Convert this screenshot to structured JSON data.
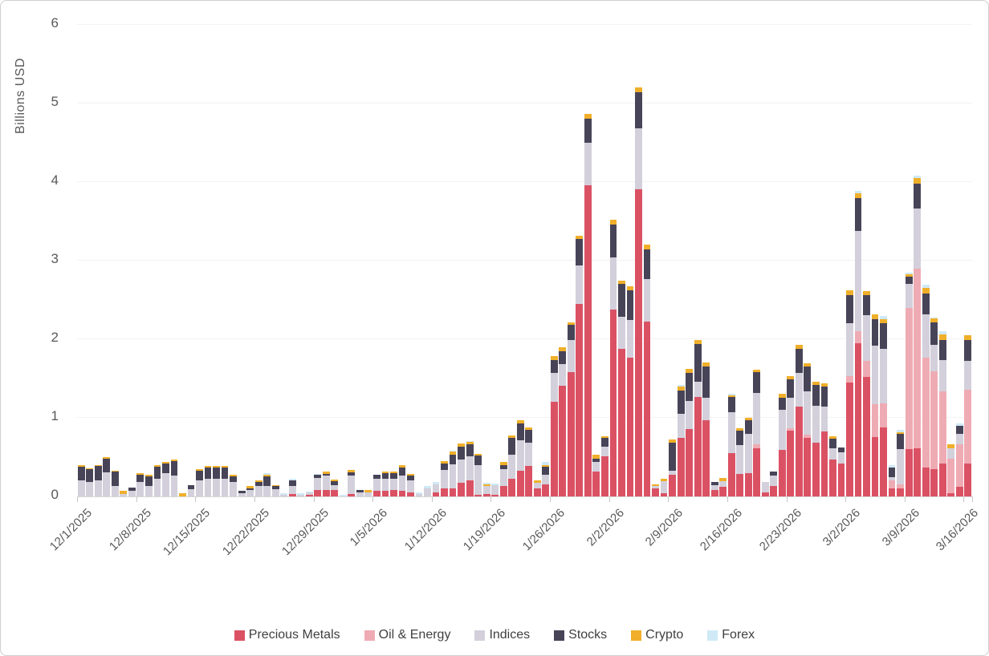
{
  "chart": {
    "ylabel": "Billions USD",
    "background": "#ffffff",
    "border_color": "#cfcfcf",
    "axis_text_color": "#595959",
    "gridline_color": "#f2f2f2",
    "axis_line_color": "#d6d6d6",
    "y_ticks": [
      0,
      1,
      2,
      3,
      4,
      5,
      6
    ],
    "x_tick_labels": [
      "12/1/2025",
      "12/8/2025",
      "12/15/2025",
      "12/22/2025",
      "12/29/2025",
      "1/5/2026",
      "1/12/2026",
      "1/19/2026",
      "1/26/2026",
      "2/2/2026",
      "2/9/2026",
      "2/16/2026",
      "2/23/2026",
      "3/2/2026",
      "3/9/2026",
      "3/16/2026"
    ]
  },
  "chart_data": {
    "type": "bar",
    "stacked": true,
    "title": "",
    "xlabel": "",
    "ylabel": "Billions USD",
    "ylim": [
      0,
      6
    ],
    "grid": "horizontal-faint",
    "legend_position": "bottom",
    "categories": [
      "12/1/2025",
      "12/2/2025",
      "12/3/2025",
      "12/4/2025",
      "12/5/2025",
      "12/6/2025",
      "12/7/2025",
      "12/8/2025",
      "12/9/2025",
      "12/10/2025",
      "12/11/2025",
      "12/12/2025",
      "12/13/2025",
      "12/14/2025",
      "12/15/2025",
      "12/16/2025",
      "12/17/2025",
      "12/18/2025",
      "12/19/2025",
      "12/20/2025",
      "12/21/2025",
      "12/22/2025",
      "12/23/2025",
      "12/24/2025",
      "12/25/2025",
      "12/26/2025",
      "12/27/2025",
      "12/28/2025",
      "12/29/2025",
      "12/30/2025",
      "12/31/2025",
      "1/1/2026",
      "1/2/2026",
      "1/3/2026",
      "1/4/2026",
      "1/5/2026",
      "1/6/2026",
      "1/7/2026",
      "1/8/2026",
      "1/9/2026",
      "1/10/2026",
      "1/11/2026",
      "1/12/2026",
      "1/13/2026",
      "1/14/2026",
      "1/15/2026",
      "1/16/2026",
      "1/17/2026",
      "1/18/2026",
      "1/19/2026",
      "1/20/2026",
      "1/21/2026",
      "1/22/2026",
      "1/23/2026",
      "1/24/2026",
      "1/25/2026",
      "1/26/2026",
      "1/27/2026",
      "1/28/2026",
      "1/29/2026",
      "1/30/2026",
      "1/31/2026",
      "2/1/2026",
      "2/2/2026",
      "2/3/2026",
      "2/4/2026",
      "2/5/2026",
      "2/6/2026",
      "2/7/2026",
      "2/8/2026",
      "2/9/2026",
      "2/10/2026",
      "2/11/2026",
      "2/12/2026",
      "2/13/2026",
      "2/14/2026",
      "2/15/2026",
      "2/16/2026",
      "2/17/2026",
      "2/18/2026",
      "2/19/2026",
      "2/20/2026",
      "2/21/2026",
      "2/22/2026",
      "2/23/2026",
      "2/24/2026",
      "2/25/2026",
      "2/26/2026",
      "2/27/2026",
      "2/28/2026",
      "3/1/2026",
      "3/2/2026",
      "3/3/2026",
      "3/4/2026",
      "3/5/2026",
      "3/6/2026",
      "3/7/2026",
      "3/8/2026",
      "3/9/2026",
      "3/10/2026",
      "3/11/2026",
      "3/12/2026",
      "3/13/2026",
      "3/14/2026",
      "3/15/2026",
      "3/16/2026"
    ],
    "series": [
      {
        "name": "Precious Metals",
        "color": "#DB5164",
        "values": [
          0,
          0,
          0,
          0,
          0,
          0,
          0,
          0,
          0,
          0,
          0,
          0,
          0,
          0,
          0,
          0,
          0,
          0,
          0,
          0,
          0,
          0,
          0,
          0,
          0,
          0.03,
          0,
          0.02,
          0.08,
          0.08,
          0.08,
          0,
          0.03,
          0,
          0,
          0.07,
          0.07,
          0.08,
          0.07,
          0.05,
          0,
          0,
          0.05,
          0.1,
          0.1,
          0.17,
          0.2,
          0.02,
          0.03,
          0.02,
          0.13,
          0.22,
          0.33,
          0.39,
          0.1,
          0.15,
          1.2,
          1.41,
          1.58,
          2.45,
          3.96,
          0.32,
          0.51,
          2.38,
          1.88,
          1.77,
          3.91,
          2.22,
          0.1,
          0.04,
          0.28,
          0.75,
          0.86,
          1.27,
          0.97,
          0.08,
          0.12,
          0.55,
          0.29,
          0.3,
          0.61,
          0.05,
          0.13,
          0.59,
          0.84,
          1.14,
          0.75,
          0.68,
          0.83,
          0.47,
          0.42,
          1.45,
          1.95,
          1.52,
          0.76,
          0.88,
          0.1,
          0.1,
          0.6,
          0.61,
          0.37,
          0.35,
          0.42,
          0.04,
          0.12,
          0.42
        ]
      },
      {
        "name": "Oil & Energy",
        "color": "#EFABB3",
        "values": [
          0,
          0,
          0,
          0,
          0,
          0,
          0,
          0,
          0,
          0,
          0,
          0,
          0,
          0,
          0,
          0,
          0,
          0,
          0,
          0,
          0,
          0,
          0,
          0,
          0,
          0,
          0,
          0,
          0,
          0,
          0,
          0,
          0,
          0,
          0,
          0,
          0,
          0,
          0,
          0,
          0,
          0,
          0,
          0,
          0,
          0,
          0,
          0,
          0,
          0,
          0,
          0,
          0,
          0,
          0,
          0,
          0,
          0,
          0,
          0,
          0,
          0,
          0,
          0,
          0,
          0,
          0,
          0,
          0,
          0,
          0,
          0,
          0,
          0,
          0,
          0,
          0,
          0,
          0,
          0,
          0.05,
          0,
          0,
          0,
          0.03,
          0,
          0.04,
          0,
          0,
          0,
          0,
          0.08,
          0.15,
          0.2,
          0.41,
          0.3,
          0.1,
          0.05,
          1.8,
          2.29,
          1.4,
          1.24,
          0.92,
          0.44,
          0.54,
          0.94
        ]
      },
      {
        "name": "Indices",
        "color": "#D3D0DC",
        "values": [
          0.2,
          0.18,
          0.2,
          0.31,
          0.13,
          0.03,
          0.07,
          0.18,
          0.13,
          0.22,
          0.3,
          0.27,
          0,
          0.09,
          0.2,
          0.22,
          0.22,
          0.22,
          0.18,
          0.04,
          0.08,
          0.13,
          0.13,
          0.09,
          0.02,
          0.1,
          0.02,
          0.03,
          0.15,
          0.19,
          0.06,
          0,
          0.24,
          0.05,
          0.05,
          0.15,
          0.15,
          0.14,
          0.2,
          0.15,
          0.03,
          0.1,
          0.1,
          0.24,
          0.31,
          0.3,
          0.31,
          0.38,
          0.1,
          0.12,
          0.22,
          0.31,
          0.38,
          0.29,
          0.07,
          0.13,
          0.37,
          0.27,
          0.41,
          0.49,
          0.54,
          0.12,
          0.12,
          0.66,
          0.41,
          0.48,
          0.77,
          0.55,
          0.03,
          0.15,
          0.05,
          0.3,
          0.35,
          0.19,
          0.29,
          0.06,
          0.07,
          0.52,
          0.36,
          0.5,
          0.66,
          0.13,
          0.14,
          0.51,
          0.39,
          0.43,
          0.55,
          0.47,
          0.31,
          0.14,
          0.14,
          0.67,
          1.28,
          0.59,
          0.75,
          0.7,
          0.05,
          0.45,
          0.3,
          0.76,
          0.55,
          0.34,
          0.39,
          0.13,
          0.14,
          0.36
        ]
      },
      {
        "name": "Stocks",
        "color": "#484458",
        "values": [
          0.18,
          0.17,
          0.19,
          0.17,
          0.19,
          0,
          0.04,
          0.1,
          0.13,
          0.16,
          0.12,
          0.18,
          0,
          0.05,
          0.13,
          0.15,
          0.15,
          0.15,
          0.08,
          0.03,
          0.02,
          0.05,
          0.13,
          0.04,
          0,
          0.07,
          0,
          0,
          0.05,
          0.02,
          0.05,
          0,
          0.04,
          0.03,
          0,
          0.06,
          0.08,
          0.08,
          0.1,
          0.07,
          0,
          0,
          0,
          0.08,
          0.12,
          0.16,
          0.15,
          0.12,
          0,
          0,
          0.05,
          0.22,
          0.22,
          0.17,
          0,
          0.1,
          0.17,
          0.17,
          0.19,
          0.34,
          0.31,
          0.04,
          0.12,
          0.42,
          0.41,
          0.37,
          0.46,
          0.37,
          0,
          0,
          0.35,
          0.3,
          0.36,
          0.48,
          0.39,
          0.04,
          0,
          0.2,
          0.19,
          0.17,
          0.26,
          0,
          0.05,
          0.16,
          0.23,
          0.31,
          0.31,
          0.27,
          0.26,
          0.12,
          0.06,
          0.36,
          0.42,
          0.25,
          0.34,
          0.32,
          0.12,
          0.2,
          0.1,
          0.32,
          0.26,
          0.28,
          0.26,
          0,
          0.1,
          0.27
        ]
      },
      {
        "name": "Crypto",
        "color": "#F0AF2A",
        "values": [
          0.02,
          0.01,
          0.01,
          0.02,
          0.01,
          0.04,
          0,
          0.02,
          0.02,
          0.02,
          0.02,
          0.02,
          0.04,
          0,
          0.02,
          0.02,
          0.02,
          0.02,
          0.02,
          0,
          0.03,
          0.02,
          0.02,
          0.01,
          0,
          0,
          0,
          0,
          0,
          0.03,
          0.02,
          0,
          0.03,
          0,
          0.03,
          0,
          0.02,
          0.02,
          0.03,
          0.02,
          0,
          0,
          0,
          0.03,
          0.04,
          0.04,
          0.03,
          0.02,
          0.02,
          0,
          0.04,
          0.03,
          0.04,
          0.03,
          0.03,
          0.02,
          0.05,
          0.05,
          0.03,
          0.04,
          0.06,
          0.05,
          0.02,
          0.06,
          0.05,
          0.05,
          0.06,
          0.06,
          0.02,
          0.04,
          0.04,
          0.05,
          0.05,
          0.05,
          0.05,
          0,
          0.04,
          0.02,
          0.03,
          0.03,
          0.03,
          0,
          0,
          0.05,
          0.04,
          0.05,
          0.04,
          0.04,
          0.04,
          0.04,
          0,
          0.06,
          0.06,
          0.05,
          0.06,
          0.06,
          0,
          0.02,
          0.03,
          0.07,
          0.07,
          0.06,
          0.07,
          0.05,
          0,
          0.06
        ]
      },
      {
        "name": "Forex",
        "color": "#CFE9F6",
        "values": [
          0,
          0,
          0,
          0,
          0,
          0,
          0,
          0,
          0,
          0,
          0,
          0,
          0,
          0,
          0,
          0,
          0,
          0,
          0,
          0,
          0,
          0,
          0.02,
          0,
          0.02,
          0.02,
          0.02,
          0.01,
          0.01,
          0,
          0,
          0.02,
          0,
          0,
          0,
          0,
          0,
          0,
          0,
          0,
          0.02,
          0.03,
          0.03,
          0,
          0.01,
          0,
          0.01,
          0,
          0.02,
          0.02,
          0,
          0,
          0,
          0,
          0,
          0.04,
          0,
          0,
          0,
          0,
          0,
          0,
          0,
          0,
          0,
          0,
          0,
          0,
          0,
          0,
          0,
          0.02,
          0,
          0,
          0,
          0,
          0,
          0.02,
          0,
          0,
          0,
          0,
          0,
          0,
          0,
          0,
          0,
          0,
          0,
          0,
          0,
          0,
          0.03,
          0,
          0,
          0.04,
          0.03,
          0.03,
          0.02,
          0.03,
          0.04,
          0.01,
          0.04,
          0,
          0.03,
          0
        ]
      }
    ]
  }
}
